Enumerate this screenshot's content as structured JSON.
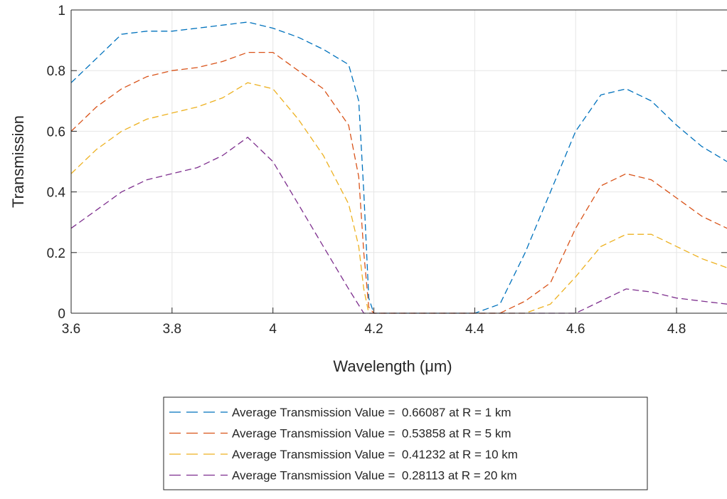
{
  "chart_data": {
    "type": "line",
    "title": "",
    "xlabel": "Wavelength (μm)",
    "ylabel": "Transmission",
    "xlim": [
      3.6,
      4.9
    ],
    "ylim": [
      0,
      1
    ],
    "x_ticks": [
      "3.6",
      "3.8",
      "4",
      "4.2",
      "4.4",
      "4.6",
      "4.8"
    ],
    "y_ticks": [
      "0",
      "0.2",
      "0.4",
      "0.6",
      "0.8",
      "1"
    ],
    "grid": true,
    "legend_position": "bottom-outside",
    "series": [
      {
        "name": "Average Transmission Value =  0.66087 at R = 1 km",
        "color": "#0072BD",
        "line_style": "dashed",
        "points": [
          [
            3.6,
            0.76
          ],
          [
            3.65,
            0.84
          ],
          [
            3.7,
            0.92
          ],
          [
            3.75,
            0.93
          ],
          [
            3.8,
            0.93
          ],
          [
            3.85,
            0.94
          ],
          [
            3.9,
            0.95
          ],
          [
            3.95,
            0.96
          ],
          [
            4.0,
            0.94
          ],
          [
            4.05,
            0.91
          ],
          [
            4.1,
            0.87
          ],
          [
            4.15,
            0.82
          ],
          [
            4.17,
            0.7
          ],
          [
            4.18,
            0.4
          ],
          [
            4.19,
            0.05
          ],
          [
            4.2,
            0.0
          ],
          [
            4.4,
            0.0
          ],
          [
            4.45,
            0.03
          ],
          [
            4.5,
            0.2
          ],
          [
            4.55,
            0.4
          ],
          [
            4.6,
            0.6
          ],
          [
            4.65,
            0.72
          ],
          [
            4.7,
            0.74
          ],
          [
            4.75,
            0.7
          ],
          [
            4.8,
            0.62
          ],
          [
            4.85,
            0.55
          ],
          [
            4.9,
            0.5
          ]
        ]
      },
      {
        "name": "Average Transmission Value =  0.53858 at R = 5 km",
        "color": "#D95319",
        "line_style": "dashed",
        "points": [
          [
            3.6,
            0.6
          ],
          [
            3.65,
            0.68
          ],
          [
            3.7,
            0.74
          ],
          [
            3.75,
            0.78
          ],
          [
            3.8,
            0.8
          ],
          [
            3.85,
            0.81
          ],
          [
            3.9,
            0.83
          ],
          [
            3.95,
            0.86
          ],
          [
            4.0,
            0.86
          ],
          [
            4.05,
            0.8
          ],
          [
            4.1,
            0.74
          ],
          [
            4.15,
            0.62
          ],
          [
            4.17,
            0.45
          ],
          [
            4.18,
            0.2
          ],
          [
            4.19,
            0.02
          ],
          [
            4.2,
            0.0
          ],
          [
            4.45,
            0.0
          ],
          [
            4.5,
            0.04
          ],
          [
            4.55,
            0.1
          ],
          [
            4.6,
            0.28
          ],
          [
            4.65,
            0.42
          ],
          [
            4.7,
            0.46
          ],
          [
            4.75,
            0.44
          ],
          [
            4.8,
            0.38
          ],
          [
            4.85,
            0.32
          ],
          [
            4.9,
            0.28
          ]
        ]
      },
      {
        "name": "Average Transmission Value =  0.41232 at R = 10 km",
        "color": "#EDB120",
        "line_style": "dashed",
        "points": [
          [
            3.6,
            0.46
          ],
          [
            3.65,
            0.54
          ],
          [
            3.7,
            0.6
          ],
          [
            3.75,
            0.64
          ],
          [
            3.8,
            0.66
          ],
          [
            3.85,
            0.68
          ],
          [
            3.9,
            0.71
          ],
          [
            3.95,
            0.76
          ],
          [
            4.0,
            0.74
          ],
          [
            4.05,
            0.64
          ],
          [
            4.1,
            0.52
          ],
          [
            4.15,
            0.36
          ],
          [
            4.17,
            0.22
          ],
          [
            4.18,
            0.08
          ],
          [
            4.19,
            0.0
          ],
          [
            4.5,
            0.0
          ],
          [
            4.55,
            0.03
          ],
          [
            4.6,
            0.12
          ],
          [
            4.65,
            0.22
          ],
          [
            4.7,
            0.26
          ],
          [
            4.75,
            0.26
          ],
          [
            4.8,
            0.22
          ],
          [
            4.85,
            0.18
          ],
          [
            4.9,
            0.15
          ]
        ]
      },
      {
        "name": "Average Transmission Value =  0.28113 at R = 20 km",
        "color": "#7E2F8E",
        "line_style": "dashed",
        "points": [
          [
            3.6,
            0.28
          ],
          [
            3.65,
            0.34
          ],
          [
            3.7,
            0.4
          ],
          [
            3.75,
            0.44
          ],
          [
            3.8,
            0.46
          ],
          [
            3.85,
            0.48
          ],
          [
            3.9,
            0.52
          ],
          [
            3.95,
            0.58
          ],
          [
            4.0,
            0.5
          ],
          [
            4.05,
            0.36
          ],
          [
            4.1,
            0.22
          ],
          [
            4.15,
            0.08
          ],
          [
            4.18,
            0.0
          ],
          [
            4.6,
            0.0
          ],
          [
            4.65,
            0.04
          ],
          [
            4.7,
            0.08
          ],
          [
            4.75,
            0.07
          ],
          [
            4.8,
            0.05
          ],
          [
            4.85,
            0.04
          ],
          [
            4.9,
            0.03
          ]
        ]
      }
    ]
  }
}
